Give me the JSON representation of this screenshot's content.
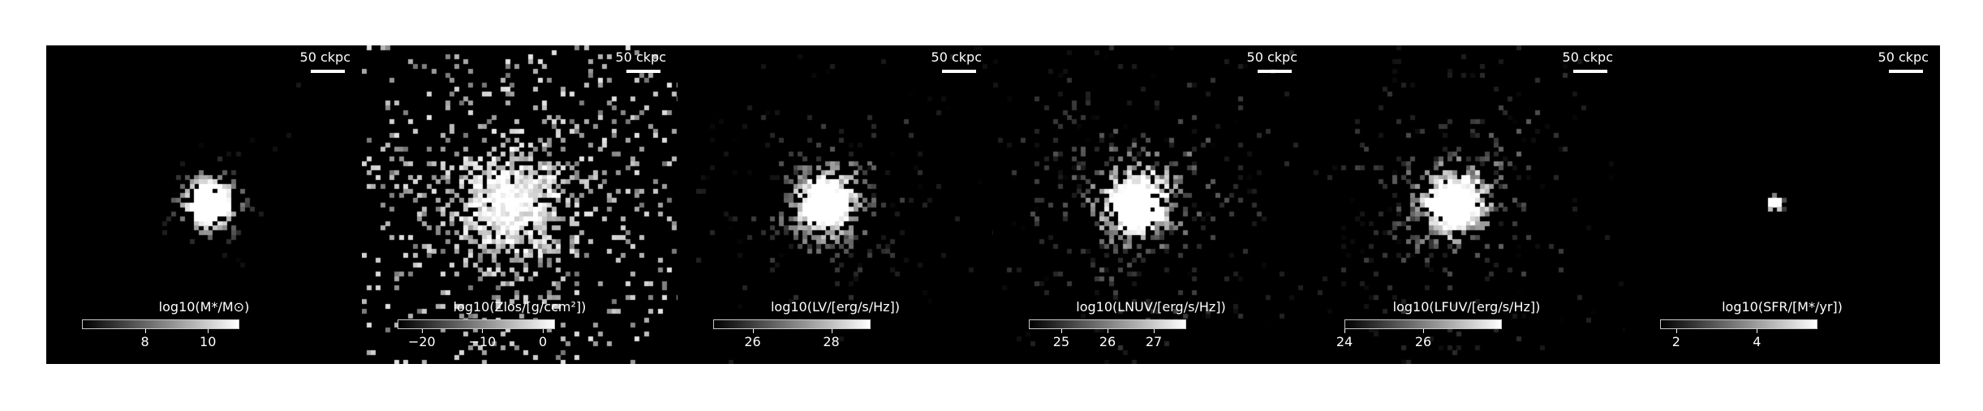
{
  "scale_bar_label": "50 ckpc",
  "colormap": [
    "#000000",
    "#ffffff"
  ],
  "panels": [
    {
      "colorbar_title": "log10(M*/M⊙)",
      "colorbar_range": [
        6,
        11
      ],
      "ticks": [
        {
          "value": 8,
          "label": "8"
        },
        {
          "value": 10,
          "label": "10"
        }
      ],
      "galaxy_center": [
        0.51,
        0.49
      ]
    },
    {
      "colorbar_title": "log10(Zlos/[g/ccm²])",
      "colorbar_range": [
        -24,
        2
      ],
      "ticks": [
        {
          "value": -20,
          "label": "−20"
        },
        {
          "value": -10,
          "label": "−10"
        },
        {
          "value": 0,
          "label": "0"
        }
      ],
      "galaxy_center": [
        0.46,
        0.49
      ]
    },
    {
      "colorbar_title": "log10(LV/[erg/s/Hz])",
      "colorbar_range": [
        25,
        29
      ],
      "ticks": [
        {
          "value": 26,
          "label": "26"
        },
        {
          "value": 28,
          "label": "28"
        }
      ],
      "galaxy_center": [
        0.46,
        0.49
      ]
    },
    {
      "colorbar_title": "log10(LNUV/[erg/s/Hz])",
      "colorbar_range": [
        24.3,
        27.7
      ],
      "ticks": [
        {
          "value": 25,
          "label": "25"
        },
        {
          "value": 26,
          "label": "26"
        },
        {
          "value": 27,
          "label": "27"
        }
      ],
      "galaxy_center": [
        0.44,
        0.49
      ]
    },
    {
      "colorbar_title": "log10(LFUV/[erg/s/Hz])",
      "colorbar_range": [
        24,
        28
      ],
      "ticks": [
        {
          "value": 24,
          "label": "24"
        },
        {
          "value": 26,
          "label": "26"
        }
      ],
      "galaxy_center": [
        0.45,
        0.49
      ]
    },
    {
      "colorbar_title": "log10(SFR/[M*/yr])",
      "colorbar_range": [
        1.6,
        5.5
      ],
      "ticks": [
        {
          "value": 2,
          "label": "2"
        },
        {
          "value": 4,
          "label": "4"
        }
      ],
      "galaxy_center": [
        0.47,
        0.49
      ]
    }
  ]
}
